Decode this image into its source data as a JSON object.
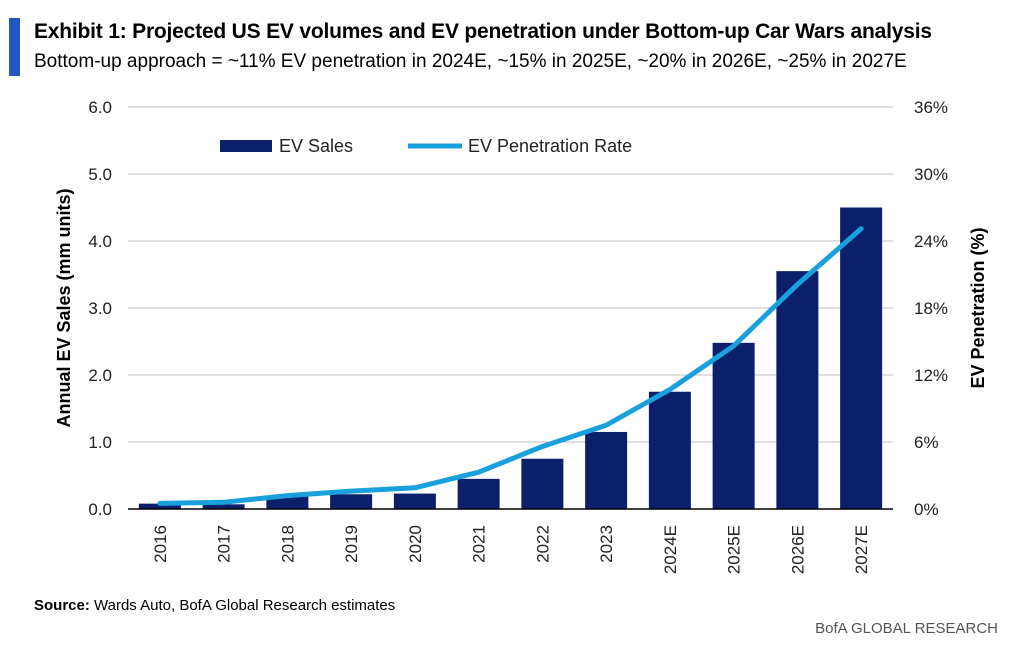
{
  "header": {
    "title": "Exhibit 1: Projected US EV volumes and EV penetration under Bottom-up Car Wars analysis",
    "subtitle": "Bottom-up approach = ~11% EV penetration in 2024E, ~15% in 2025E, ~20% in 2026E, ~25% in 2027E"
  },
  "footer": {
    "source_label": "Source:",
    "source_text": " Wards Auto, BofA Global Research estimates",
    "brand": "BofA GLOBAL RESEARCH"
  },
  "colors": {
    "accent": "#2156c4",
    "bar": "#0b1f6b",
    "line": "#1aa0dd",
    "grid": "#bfbfbf",
    "axis": "#000000"
  },
  "chart_data": {
    "type": "bar",
    "categories": [
      "2016",
      "2017",
      "2018",
      "2019",
      "2020",
      "2021",
      "2022",
      "2023",
      "2024E",
      "2025E",
      "2026E",
      "2027E"
    ],
    "series": [
      {
        "name": "EV Sales",
        "type": "bar",
        "axis": "left",
        "values": [
          0.08,
          0.07,
          0.2,
          0.22,
          0.23,
          0.45,
          0.75,
          1.15,
          1.75,
          2.48,
          3.55,
          4.5
        ]
      },
      {
        "name": "EV Penetration Rate",
        "type": "line",
        "axis": "right",
        "values": [
          0.5,
          0.6,
          1.2,
          1.6,
          1.9,
          3.3,
          5.6,
          7.5,
          10.7,
          14.6,
          20.1,
          25.1
        ]
      }
    ],
    "ylabel": "Annual EV Sales (mm units)",
    "ylabel_right": "EV Penetration (%)",
    "ylim": [
      0,
      6
    ],
    "ylim_right": [
      0,
      36
    ],
    "yticks": [
      "0.0",
      "1.0",
      "2.0",
      "3.0",
      "4.0",
      "5.0",
      "6.0"
    ],
    "yticks_right": [
      "0%",
      "6%",
      "12%",
      "18%",
      "24%",
      "30%",
      "36%"
    ],
    "grid": true,
    "legend_position": "top-left"
  }
}
